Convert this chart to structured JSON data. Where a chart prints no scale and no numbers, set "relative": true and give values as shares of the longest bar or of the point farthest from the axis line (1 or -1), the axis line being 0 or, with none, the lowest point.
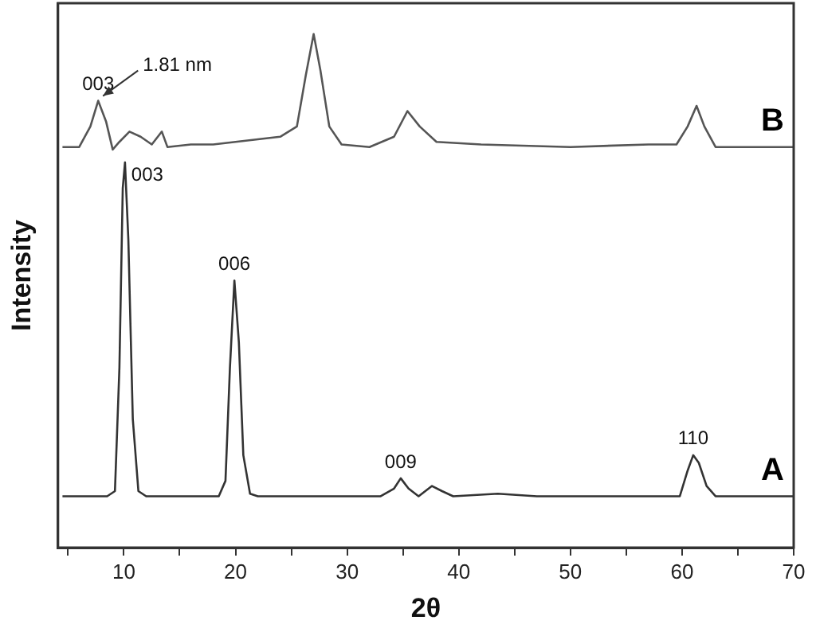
{
  "chart_data": {
    "type": "line",
    "xlabel": "2θ",
    "ylabel": "Intensity",
    "relative": true,
    "legend": false,
    "grid": false,
    "marker": "none",
    "line_style": "solid",
    "xlim": [
      4.1,
      70
    ],
    "xticks": [
      {
        "value": 5,
        "label": null
      },
      10,
      {
        "value": 15,
        "label": null
      },
      20,
      {
        "value": 25,
        "label": null
      },
      30,
      {
        "value": 35,
        "label": null
      },
      40,
      {
        "value": 45,
        "label": null
      },
      50,
      {
        "value": 55,
        "label": null
      },
      60,
      {
        "value": 65,
        "label": null
      },
      70
    ],
    "series": [
      {
        "name": "A",
        "color": "#333333",
        "x": [
          4.5,
          8.5,
          9.2,
          9.6,
          9.9,
          10.1,
          10.4,
          10.8,
          11.3,
          12,
          18.5,
          19.1,
          19.5,
          19.9,
          20.3,
          20.7,
          21.3,
          22,
          30,
          33,
          34.2,
          34.8,
          35.5,
          36.4,
          37.6,
          38.5,
          39.5,
          43.5,
          47,
          59.8,
          60.5,
          61,
          61.5,
          62.2,
          63,
          70
        ],
        "values": [
          0.1,
          0.1,
          0.11,
          0.35,
          0.7,
          0.75,
          0.6,
          0.25,
          0.11,
          0.1,
          0.1,
          0.13,
          0.35,
          0.52,
          0.4,
          0.18,
          0.105,
          0.1,
          0.1,
          0.1,
          0.115,
          0.135,
          0.115,
          0.1,
          0.12,
          0.11,
          0.1,
          0.105,
          0.1,
          0.1,
          0.15,
          0.18,
          0.165,
          0.12,
          0.1,
          0.1
        ]
      },
      {
        "name": "B",
        "color": "#555555",
        "x": [
          4.5,
          6,
          7,
          7.7,
          8.4,
          9,
          9.6,
          10.5,
          11.5,
          12.5,
          13.4,
          13.9,
          16,
          18,
          20,
          22,
          24,
          25.5,
          26.3,
          27,
          27.6,
          28.4,
          29.5,
          32,
          34.2,
          35.4,
          36.5,
          38,
          42,
          50,
          57,
          59.5,
          60.5,
          61.3,
          62,
          63,
          70
        ],
        "values": [
          0.78,
          0.78,
          0.82,
          0.87,
          0.83,
          0.775,
          0.79,
          0.81,
          0.8,
          0.785,
          0.81,
          0.78,
          0.785,
          0.785,
          0.79,
          0.795,
          0.8,
          0.82,
          0.92,
          1.0,
          0.93,
          0.82,
          0.785,
          0.78,
          0.8,
          0.85,
          0.82,
          0.79,
          0.785,
          0.78,
          0.785,
          0.785,
          0.82,
          0.86,
          0.82,
          0.78,
          0.78
        ]
      }
    ],
    "annotations": [
      {
        "text": "003",
        "x": 7.7,
        "y": 0.87
      },
      {
        "text": "1.81 nm",
        "x": 7.7,
        "y": 0.87
      },
      {
        "text": "003",
        "x": 10.1,
        "y": 0.75
      },
      {
        "text": "006",
        "x": 19.9,
        "y": 0.52
      },
      {
        "text": "009",
        "x": 34.8,
        "y": 0.135
      },
      {
        "text": "110",
        "x": 61,
        "y": 0.18
      }
    ]
  }
}
